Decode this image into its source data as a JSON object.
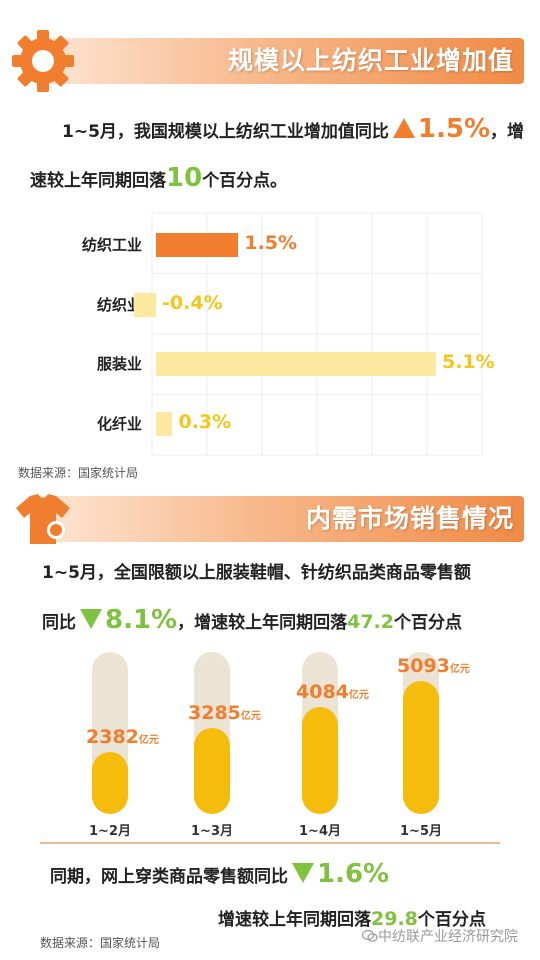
{
  "section1": {
    "title": "规模以上纺织工业增加值",
    "line1_pre": "1~5月，我国规模以上纺织工业增加值同比",
    "line1_value": "1.5%",
    "line1_post": "，增",
    "line2_pre": "速较上年同期回落",
    "line2_value": "10",
    "line2_post": "个百分点。"
  },
  "chart_data": [
    {
      "type": "bar",
      "orientation": "horizontal",
      "categories": [
        "纺织工业",
        "纺织业",
        "服装业",
        "化纤业"
      ],
      "values": [
        1.5,
        -0.4,
        5.1,
        0.3
      ],
      "value_labels": [
        "1.5%",
        "-0.4%",
        "5.1%",
        "0.3%"
      ],
      "highlight_color": "#f07e2e",
      "bar_color": "#fde8a0",
      "label_color": "#f5c518",
      "grid": true
    },
    {
      "type": "bar",
      "orientation": "vertical",
      "categories": [
        "1~2月",
        "1~3月",
        "1~4月",
        "1~5月"
      ],
      "values": [
        2382,
        3285,
        4084,
        5093
      ],
      "value_labels": [
        "2382",
        "3285",
        "4084",
        "5093"
      ],
      "unit": "亿元",
      "bar_color": "#f6bc0c",
      "track_color": "#ebe3d3"
    }
  ],
  "source1": "数据来源：国家统计局",
  "section2": {
    "title": "内需市场销售情况",
    "line1": "1~5月，全国限额以上服装鞋帽、针纺织品类商品零售额",
    "line2_pre": "同比",
    "line2_value": "8.1%",
    "line2_mid": "，增速较上年同期回落",
    "line2_drop": "47.2",
    "line2_post": "个百分点"
  },
  "section3": {
    "line1_pre": "同期，网上穿类商品零售额同比",
    "line1_value": "1.6%",
    "line2_pre": "增速较上年同期回落",
    "line2_value": "29.8",
    "line2_post": "个百分点"
  },
  "source2": "数据来源：国家统计局",
  "watermark": "中纺联产业经济研究院",
  "icons": [
    "gear-icon",
    "tshirt-icon",
    "wechat-icon"
  ]
}
